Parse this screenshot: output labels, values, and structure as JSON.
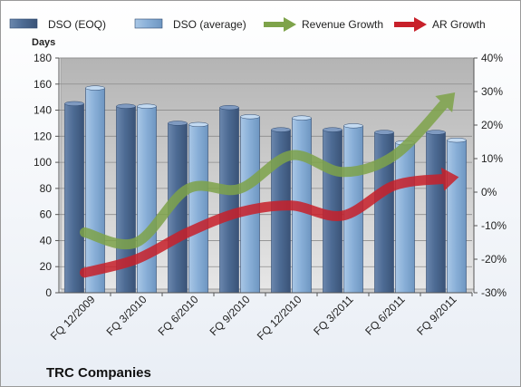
{
  "chart_data": {
    "type": "bar",
    "ylabel": "Days",
    "company": "TRC Companies",
    "categories": [
      "FQ 12/2009",
      "FQ 3/2010",
      "FQ 6/2010",
      "FQ 9/2010",
      "FQ 12/2010",
      "FQ 3/2011",
      "FQ 6/2011",
      "FQ 9/2011"
    ],
    "ylim": [
      0,
      180
    ],
    "y_ticks": [
      "0",
      "20",
      "40",
      "60",
      "80",
      "100",
      "120",
      "140",
      "160",
      "180"
    ],
    "y2lim": [
      -30,
      40
    ],
    "y2_ticks": [
      "-30%",
      "-20%",
      "-10%",
      "0%",
      "10%",
      "20%",
      "30%",
      "40%"
    ],
    "grid": true,
    "legend_position": "top",
    "series": [
      {
        "name": "DSO (EOQ)",
        "kind": "bar",
        "color": "#4f6d97",
        "values": [
          145,
          143,
          130,
          142,
          125,
          125,
          123,
          123
        ]
      },
      {
        "name": "DSO (average)",
        "kind": "bar",
        "color": "#8eb4dc",
        "values": [
          157,
          143,
          129,
          135,
          134,
          128,
          115,
          117
        ]
      },
      {
        "name": "Revenue Growth",
        "kind": "line",
        "axis": "right",
        "color": "#7ea34a",
        "unit": "%",
        "values": [
          -12,
          -15,
          1,
          1,
          11,
          6,
          11,
          27
        ]
      },
      {
        "name": "AR Growth",
        "kind": "line",
        "axis": "right",
        "color": "#c8202a",
        "unit": "%",
        "values": [
          -24,
          -20,
          -12,
          -6,
          -4,
          -7,
          2,
          4
        ]
      }
    ]
  }
}
